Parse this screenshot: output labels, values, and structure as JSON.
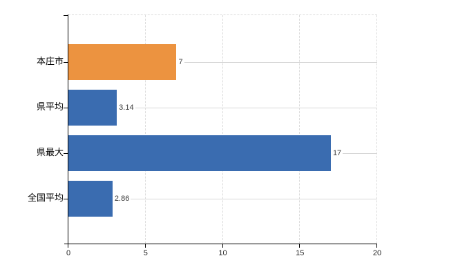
{
  "chart_data": {
    "type": "bar",
    "orientation": "horizontal",
    "title": "",
    "xlabel": "",
    "ylabel": "",
    "categories": [
      "本庄市",
      "県平均",
      "県最大",
      "全国平均"
    ],
    "values": [
      7,
      3.14,
      17,
      2.86
    ],
    "value_labels": [
      "7",
      "3.14",
      "17",
      "2.86"
    ],
    "bar_colors": [
      "#EC9340",
      "#3A6CB0",
      "#3A6CB0",
      "#3A6CB0"
    ],
    "xlim": [
      0,
      20
    ],
    "x_ticks": [
      0,
      5,
      10,
      15,
      20
    ],
    "x_tick_labels": [
      "0",
      "5",
      "10",
      "15",
      "20"
    ],
    "grid": true,
    "gridline_style": "dashed-vertical",
    "row_leader_lines": true,
    "legend": false,
    "legend_position": "none"
  },
  "colors": {
    "highlight_bar": "#EC9340",
    "default_bar": "#3A6CB0",
    "axis": "#000000",
    "gridline": "#DBDBDB",
    "row_leader_line": "#D6D6D6",
    "category_label_text": "#000000",
    "value_label_text": "#3A3A3A",
    "tick_label_text": "#262626",
    "background": "#FFFFFF"
  }
}
